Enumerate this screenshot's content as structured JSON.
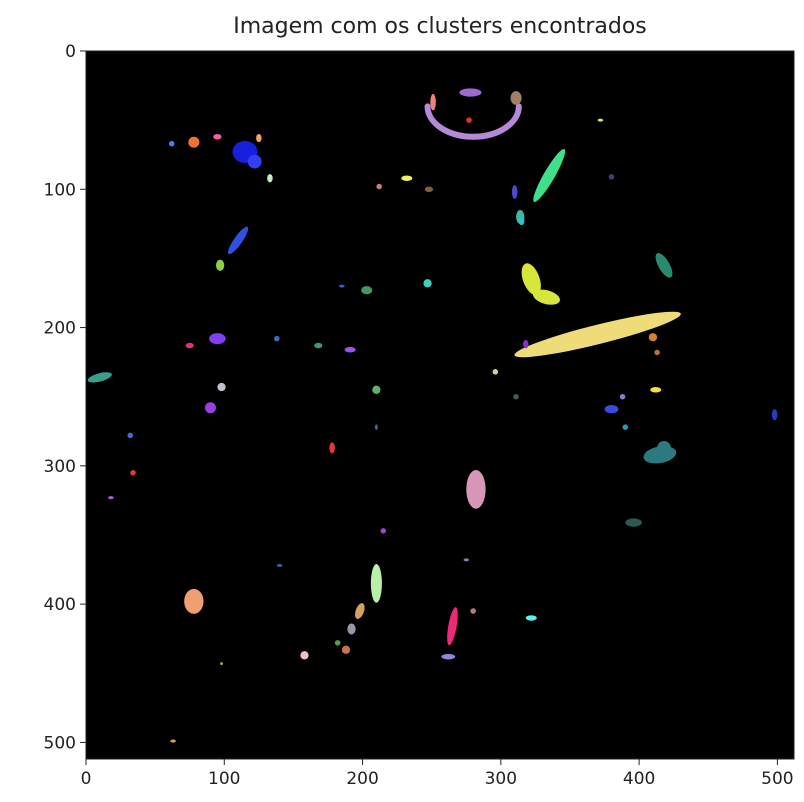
{
  "chart_data": {
    "type": "scatter",
    "title": "Imagem com os clusters encontrados",
    "xlabel": "",
    "ylabel": "",
    "xlim": [
      0,
      512
    ],
    "ylim": [
      512,
      0
    ],
    "x_ticks": [
      "0",
      "100",
      "200",
      "300",
      "400",
      "500"
    ],
    "y_ticks": [
      "0",
      "100",
      "200",
      "300",
      "400",
      "500"
    ],
    "background": "#000000",
    "grid": false,
    "clusters": [
      {
        "shape": "ellipse",
        "cx": 370,
        "cy": 205,
        "rx": 62,
        "ry": 7,
        "rot": -14,
        "color": "#eedc78"
      },
      {
        "shape": "arc",
        "cx": 280,
        "cy": 40,
        "rx": 33,
        "ry": 22,
        "color": "#b48ad8"
      },
      {
        "shape": "ellipse",
        "cx": 278,
        "cy": 30,
        "rx": 8,
        "ry": 3,
        "rot": 0,
        "color": "#9c6ad0"
      },
      {
        "shape": "ellipse",
        "cx": 314,
        "cy": 120,
        "rx": 3,
        "ry": 5,
        "rot": 0,
        "color": "#3fb8a0"
      },
      {
        "shape": "ellipse",
        "cx": 335,
        "cy": 90,
        "rx": 4,
        "ry": 22,
        "rot": 30,
        "color": "#3ee08a"
      },
      {
        "shape": "ellipse",
        "cx": 322,
        "cy": 165,
        "rx": 6,
        "ry": 12,
        "rot": -20,
        "color": "#d6e63a"
      },
      {
        "shape": "ellipse",
        "cx": 333,
        "cy": 178,
        "rx": 10,
        "ry": 5,
        "rot": 15,
        "color": "#d6e63a"
      },
      {
        "shape": "ellipse",
        "cx": 282,
        "cy": 317,
        "rx": 7,
        "ry": 14,
        "rot": 0,
        "color": "#d896b8"
      },
      {
        "shape": "ellipse",
        "cx": 210,
        "cy": 385,
        "rx": 4,
        "ry": 14,
        "rot": 0,
        "color": "#b8f0a8"
      },
      {
        "shape": "ellipse",
        "cx": 265,
        "cy": 416,
        "rx": 3,
        "ry": 14,
        "rot": 10,
        "color": "#ee2a78"
      },
      {
        "shape": "ellipse",
        "cx": 262,
        "cy": 438,
        "rx": 5,
        "ry": 2,
        "rot": 0,
        "color": "#8a8ad8"
      },
      {
        "shape": "ellipse",
        "cx": 78,
        "cy": 398,
        "rx": 7,
        "ry": 9,
        "rot": 0,
        "color": "#f0a070"
      },
      {
        "shape": "ellipse",
        "cx": 198,
        "cy": 405,
        "rx": 3,
        "ry": 6,
        "rot": 20,
        "color": "#d6a060"
      },
      {
        "shape": "ellipse",
        "cx": 192,
        "cy": 418,
        "rx": 3,
        "ry": 4,
        "rot": 0,
        "color": "#9898a8"
      },
      {
        "shape": "ellipse",
        "cx": 188,
        "cy": 433,
        "rx": 3,
        "ry": 3,
        "rot": 0,
        "color": "#d07050"
      },
      {
        "shape": "ellipse",
        "cx": 182,
        "cy": 428,
        "rx": 2,
        "ry": 2,
        "rot": 0,
        "color": "#50a050"
      },
      {
        "shape": "ellipse",
        "cx": 158,
        "cy": 437,
        "rx": 3,
        "ry": 3,
        "rot": 0,
        "color": "#f0c0c8"
      },
      {
        "shape": "ellipse",
        "cx": 322,
        "cy": 410,
        "rx": 4,
        "ry": 2,
        "rot": 0,
        "color": "#5ef0f0"
      },
      {
        "shape": "ellipse",
        "cx": 280,
        "cy": 405,
        "rx": 2,
        "ry": 2,
        "rot": 0,
        "color": "#c07878"
      },
      {
        "shape": "ellipse",
        "cx": 415,
        "cy": 292,
        "rx": 12,
        "ry": 6,
        "rot": -10,
        "color": "#2c7a80"
      },
      {
        "shape": "ellipse",
        "cx": 418,
        "cy": 287,
        "rx": 5,
        "ry": 5,
        "rot": 0,
        "color": "#2c7a80"
      },
      {
        "shape": "ellipse",
        "cx": 396,
        "cy": 341,
        "rx": 6,
        "ry": 3,
        "rot": 0,
        "color": "#2c5a50"
      },
      {
        "shape": "ellipse",
        "cx": 418,
        "cy": 155,
        "rx": 4,
        "ry": 10,
        "rot": -30,
        "color": "#2a8a70"
      },
      {
        "shape": "ellipse",
        "cx": 380,
        "cy": 259,
        "rx": 5,
        "ry": 3,
        "rot": 0,
        "color": "#3a4ae0"
      },
      {
        "shape": "ellipse",
        "cx": 412,
        "cy": 245,
        "rx": 4,
        "ry": 2,
        "rot": 0,
        "color": "#f0e040"
      },
      {
        "shape": "ellipse",
        "cx": 410,
        "cy": 207,
        "rx": 3,
        "ry": 3,
        "rot": 0,
        "color": "#d08030"
      },
      {
        "shape": "ellipse",
        "cx": 390,
        "cy": 272,
        "rx": 2,
        "ry": 2,
        "rot": 0,
        "color": "#1aa0b8"
      },
      {
        "shape": "ellipse",
        "cx": 388,
        "cy": 250,
        "rx": 2,
        "ry": 2,
        "rot": 0,
        "color": "#8080d0"
      },
      {
        "shape": "ellipse",
        "cx": 413,
        "cy": 218,
        "rx": 2,
        "ry": 2,
        "rot": 0,
        "color": "#c07030"
      },
      {
        "shape": "ellipse",
        "cx": 115,
        "cy": 73,
        "rx": 9,
        "ry": 8,
        "rot": 0,
        "color": "#1820e0"
      },
      {
        "shape": "ellipse",
        "cx": 122,
        "cy": 80,
        "rx": 5,
        "ry": 5,
        "rot": 0,
        "color": "#3040f0"
      },
      {
        "shape": "ellipse",
        "cx": 78,
        "cy": 66,
        "rx": 4,
        "ry": 4,
        "rot": 0,
        "color": "#f07030"
      },
      {
        "shape": "ellipse",
        "cx": 95,
        "cy": 62,
        "rx": 3,
        "ry": 2,
        "rot": 0,
        "color": "#f060a0"
      },
      {
        "shape": "ellipse",
        "cx": 125,
        "cy": 63,
        "rx": 2,
        "ry": 3,
        "rot": 0,
        "color": "#f0a060"
      },
      {
        "shape": "ellipse",
        "cx": 62,
        "cy": 67,
        "rx": 2,
        "ry": 2,
        "rot": 0,
        "color": "#4080f0"
      },
      {
        "shape": "ellipse",
        "cx": 133,
        "cy": 92,
        "rx": 2,
        "ry": 3,
        "rot": 0,
        "color": "#c0f0c0"
      },
      {
        "shape": "ellipse",
        "cx": 110,
        "cy": 137,
        "rx": 3,
        "ry": 12,
        "rot": 35,
        "color": "#3050e0"
      },
      {
        "shape": "ellipse",
        "cx": 97,
        "cy": 155,
        "rx": 3,
        "ry": 4,
        "rot": 0,
        "color": "#8ad040"
      },
      {
        "shape": "ellipse",
        "cx": 95,
        "cy": 208,
        "rx": 6,
        "ry": 4,
        "rot": 0,
        "color": "#8040f0"
      },
      {
        "shape": "ellipse",
        "cx": 75,
        "cy": 213,
        "rx": 3,
        "ry": 2,
        "rot": 0,
        "color": "#e0307a"
      },
      {
        "shape": "ellipse",
        "cx": 10,
        "cy": 236,
        "rx": 9,
        "ry": 3,
        "rot": -15,
        "color": "#3aa088"
      },
      {
        "shape": "ellipse",
        "cx": 98,
        "cy": 243,
        "rx": 3,
        "ry": 3,
        "rot": 0,
        "color": "#c0c0d0"
      },
      {
        "shape": "ellipse",
        "cx": 90,
        "cy": 258,
        "rx": 4,
        "ry": 4,
        "rot": 0,
        "color": "#9a40e0"
      },
      {
        "shape": "ellipse",
        "cx": 138,
        "cy": 208,
        "rx": 2,
        "ry": 2,
        "rot": 0,
        "color": "#4068c0"
      },
      {
        "shape": "ellipse",
        "cx": 168,
        "cy": 213,
        "rx": 3,
        "ry": 2,
        "rot": 0,
        "color": "#3a9a70"
      },
      {
        "shape": "ellipse",
        "cx": 191,
        "cy": 216,
        "rx": 4,
        "ry": 2,
        "rot": 0,
        "color": "#a050f0"
      },
      {
        "shape": "ellipse",
        "cx": 210,
        "cy": 245,
        "rx": 3,
        "ry": 3,
        "rot": 0,
        "color": "#60b070"
      },
      {
        "shape": "ellipse",
        "cx": 178,
        "cy": 287,
        "rx": 2,
        "ry": 4,
        "rot": 0,
        "color": "#e03a3a"
      },
      {
        "shape": "ellipse",
        "cx": 32,
        "cy": 278,
        "rx": 2,
        "ry": 2,
        "rot": 0,
        "color": "#4a6ad0"
      },
      {
        "shape": "ellipse",
        "cx": 34,
        "cy": 305,
        "rx": 2,
        "ry": 2,
        "rot": 0,
        "color": "#e03a3a"
      },
      {
        "shape": "ellipse",
        "cx": 18,
        "cy": 323,
        "rx": 2,
        "ry": 1,
        "rot": 0,
        "color": "#b060f0"
      },
      {
        "shape": "ellipse",
        "cx": 215,
        "cy": 347,
        "rx": 2,
        "ry": 2,
        "rot": 0,
        "color": "#a040d0"
      },
      {
        "shape": "ellipse",
        "cx": 232,
        "cy": 92,
        "rx": 4,
        "ry": 2,
        "rot": 0,
        "color": "#f0f060"
      },
      {
        "shape": "ellipse",
        "cx": 248,
        "cy": 100,
        "rx": 3,
        "ry": 2,
        "rot": 0,
        "color": "#806040"
      },
      {
        "shape": "ellipse",
        "cx": 212,
        "cy": 98,
        "rx": 2,
        "ry": 2,
        "rot": 0,
        "color": "#c08080"
      },
      {
        "shape": "ellipse",
        "cx": 203,
        "cy": 173,
        "rx": 4,
        "ry": 3,
        "rot": 0,
        "color": "#409a60"
      },
      {
        "shape": "ellipse",
        "cx": 185,
        "cy": 170,
        "rx": 2,
        "ry": 1,
        "rot": 0,
        "color": "#3060c0"
      },
      {
        "shape": "ellipse",
        "cx": 247,
        "cy": 168,
        "rx": 3,
        "ry": 3,
        "rot": 0,
        "color": "#40d0c0"
      },
      {
        "shape": "ellipse",
        "cx": 310,
        "cy": 102,
        "rx": 2,
        "ry": 5,
        "rot": 0,
        "color": "#4a4ad0"
      },
      {
        "shape": "ellipse",
        "cx": 315,
        "cy": 123,
        "rx": 2,
        "ry": 3,
        "rot": 0,
        "color": "#30c0d0"
      },
      {
        "shape": "ellipse",
        "cx": 311,
        "cy": 34,
        "rx": 4,
        "ry": 5,
        "rot": 0,
        "color": "#a08060"
      },
      {
        "shape": "ellipse",
        "cx": 251,
        "cy": 37,
        "rx": 2,
        "ry": 6,
        "rot": 0,
        "color": "#f08080"
      },
      {
        "shape": "ellipse",
        "cx": 277,
        "cy": 50,
        "rx": 2,
        "ry": 2,
        "rot": 0,
        "color": "#e03030"
      },
      {
        "shape": "ellipse",
        "cx": 318,
        "cy": 212,
        "rx": 2,
        "ry": 3,
        "rot": 0,
        "color": "#8030d0"
      },
      {
        "shape": "ellipse",
        "cx": 296,
        "cy": 232,
        "rx": 2,
        "ry": 2,
        "rot": 0,
        "color": "#d0d0a0"
      },
      {
        "shape": "ellipse",
        "cx": 311,
        "cy": 250,
        "rx": 2,
        "ry": 2,
        "rot": 0,
        "color": "#406050"
      },
      {
        "shape": "ellipse",
        "cx": 63,
        "cy": 499,
        "rx": 2,
        "ry": 1,
        "rot": 0,
        "color": "#d0a060"
      },
      {
        "shape": "ellipse",
        "cx": 98,
        "cy": 443,
        "rx": 1,
        "ry": 1,
        "rot": 0,
        "color": "#a0a040"
      },
      {
        "shape": "ellipse",
        "cx": 275,
        "cy": 368,
        "rx": 2,
        "ry": 1,
        "rot": 0,
        "color": "#8080c0"
      },
      {
        "shape": "ellipse",
        "cx": 140,
        "cy": 372,
        "rx": 2,
        "ry": 1,
        "rot": 0,
        "color": "#3a60a0"
      },
      {
        "shape": "ellipse",
        "cx": 372,
        "cy": 50,
        "rx": 2,
        "ry": 1,
        "rot": 0,
        "color": "#e0e060"
      },
      {
        "shape": "ellipse",
        "cx": 380,
        "cy": 91,
        "rx": 2,
        "ry": 2,
        "rot": 0,
        "color": "#404080"
      },
      {
        "shape": "ellipse",
        "cx": 498,
        "cy": 263,
        "rx": 2,
        "ry": 4,
        "rot": 0,
        "color": "#2040c0"
      },
      {
        "shape": "ellipse",
        "cx": 210,
        "cy": 272,
        "rx": 1,
        "ry": 2,
        "rot": 0,
        "color": "#4060a0"
      }
    ]
  }
}
